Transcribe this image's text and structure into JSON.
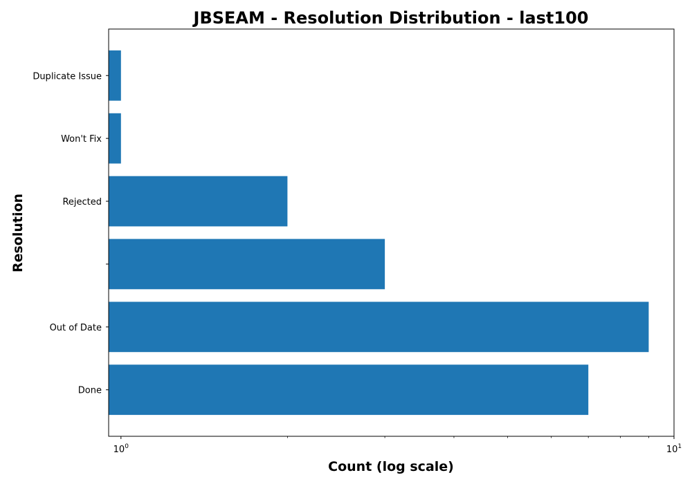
{
  "chart_data": {
    "type": "bar",
    "orientation": "horizontal",
    "title": "JBSEAM - Resolution Distribution - last100",
    "xlabel": "Count (log scale)",
    "ylabel": "Resolution",
    "xscale": "log",
    "xlim": [
      0.95,
      10
    ],
    "x_ticks": [
      {
        "value": 1,
        "base": "10",
        "exp": "0"
      },
      {
        "value": 10,
        "base": "10",
        "exp": "1"
      }
    ],
    "categories": [
      "Done",
      "Out of Date",
      "",
      "Rejected",
      "Won't Fix",
      "Duplicate Issue"
    ],
    "values": [
      7,
      9,
      3,
      2,
      1,
      1
    ],
    "bar_color": "#1f77b4",
    "grid": false,
    "legend": "none"
  }
}
